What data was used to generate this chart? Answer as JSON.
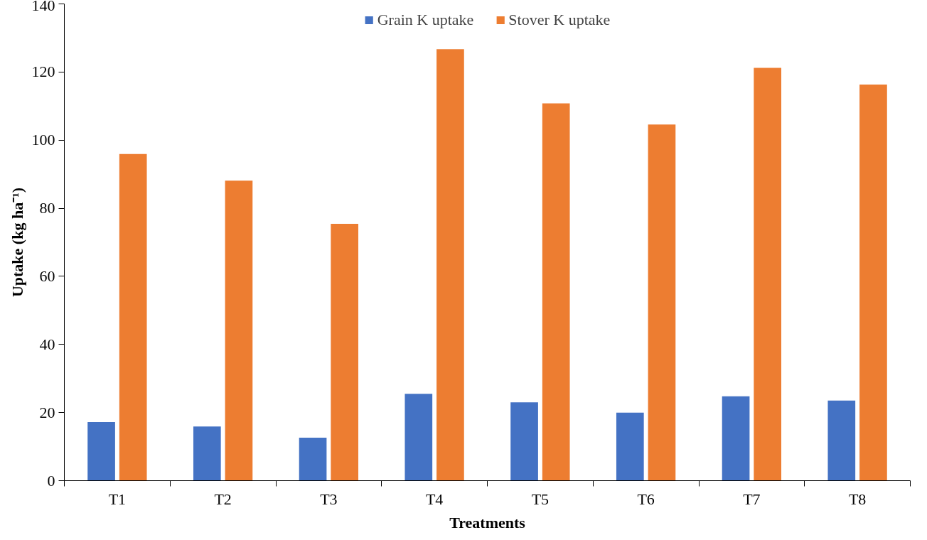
{
  "chart_data": {
    "type": "bar",
    "xlabel": "Treatments",
    "ylabel": "Uptake (kg ha⁻¹)",
    "categories": [
      "T1",
      "T2",
      "T3",
      "T4",
      "T5",
      "T6",
      "T7",
      "T8"
    ],
    "series": [
      {
        "name": "Grain K uptake",
        "color": "#4472c4",
        "values": [
          17.2,
          15.9,
          12.6,
          25.5,
          23.0,
          20.0,
          24.8,
          23.5
        ]
      },
      {
        "name": "Stover K uptake",
        "color": "#ed7d31",
        "values": [
          95.9,
          88.1,
          75.4,
          126.7,
          110.8,
          104.6,
          121.2,
          116.3
        ]
      }
    ],
    "ylim": [
      0,
      140
    ],
    "yticks": [
      0,
      20,
      40,
      60,
      80,
      100,
      120,
      140
    ],
    "grid": false,
    "legend": "top"
  }
}
